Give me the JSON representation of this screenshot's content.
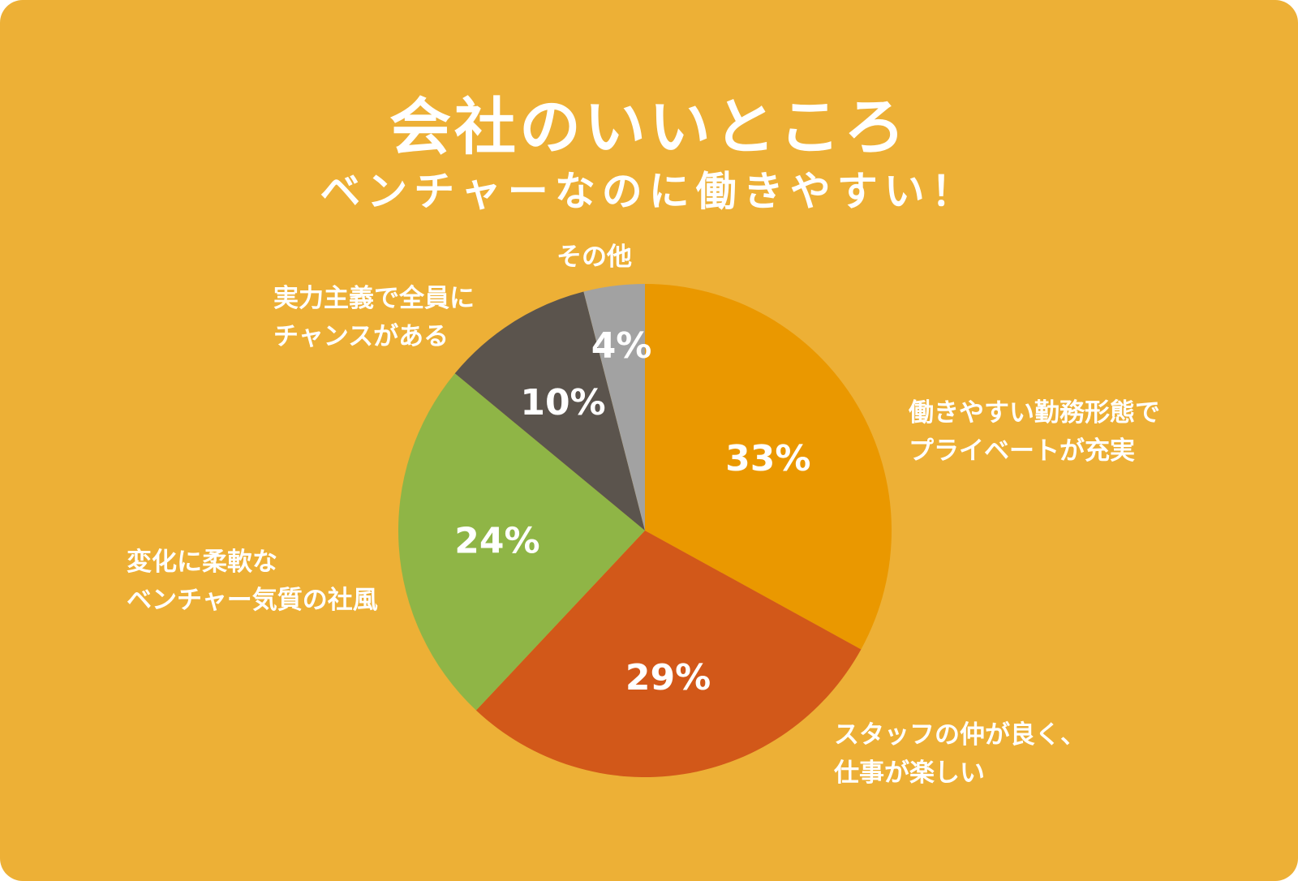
{
  "colors": {
    "background": "#EDB036",
    "text": "#FFFFFF"
  },
  "header": {
    "title": "会社のいいところ",
    "subtitle": "ベンチャーなのに働きやすい！"
  },
  "chart_data": {
    "type": "pie",
    "start": "12 o'clock",
    "direction": "clockwise",
    "slices": [
      {
        "label": "働きやすい勤務形態で\nプライベートが充実",
        "value": 33,
        "value_label": "33%",
        "color": "#EA9800"
      },
      {
        "label": "スタッフの仲が良く、\n仕事が楽しい",
        "value": 29,
        "value_label": "29%",
        "color": "#D25819"
      },
      {
        "label": "変化に柔軟な\nベンチャー気質の社風",
        "value": 24,
        "value_label": "24%",
        "color": "#8FB546"
      },
      {
        "label": "実力主義で全員に\nチャンスがある",
        "value": 10,
        "value_label": "10%",
        "color": "#5B544D"
      },
      {
        "label": "その他",
        "value": 4,
        "value_label": "4%",
        "color": "#A2A2A2"
      }
    ]
  }
}
